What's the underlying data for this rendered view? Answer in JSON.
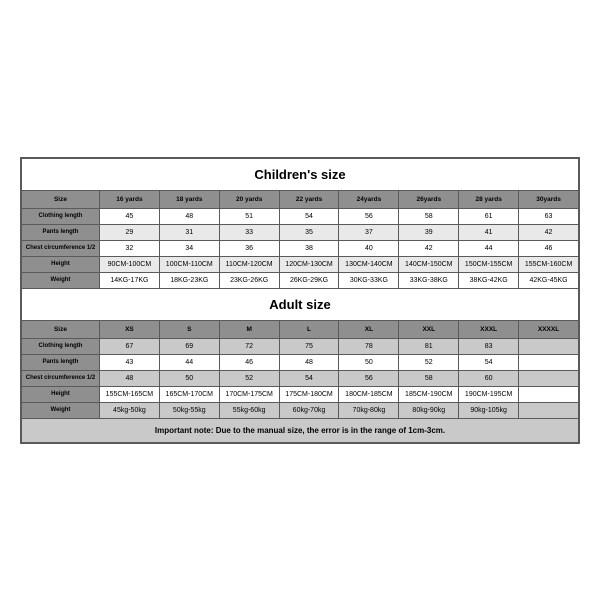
{
  "children": {
    "title": "Children's size",
    "headers": [
      "Size",
      "16 yards",
      "18 yards",
      "20 yards",
      "22 yards",
      "24yards",
      "26yards",
      "28 yards",
      "30yards"
    ],
    "rows": [
      {
        "label": "Clothing length",
        "vals": [
          "45",
          "48",
          "51",
          "54",
          "56",
          "58",
          "61",
          "63"
        ]
      },
      {
        "label": "Pants length",
        "vals": [
          "29",
          "31",
          "33",
          "35",
          "37",
          "39",
          "41",
          "42"
        ]
      },
      {
        "label": "Chest circumference 1/2",
        "vals": [
          "32",
          "34",
          "36",
          "38",
          "40",
          "42",
          "44",
          "46"
        ]
      },
      {
        "label": "Height",
        "vals": [
          "90CM-100CM",
          "100CM-110CM",
          "110CM-120CM",
          "120CM-130CM",
          "130CM-140CM",
          "140CM-150CM",
          "150CM-155CM",
          "155CM-160CM"
        ]
      },
      {
        "label": "Weight",
        "vals": [
          "14KG-17KG",
          "18KG-23KG",
          "23KG-26KG",
          "26KG-29KG",
          "30KG-33KG",
          "33KG-38KG",
          "38KG-42KG",
          "42KG-45KG"
        ]
      }
    ]
  },
  "adult": {
    "title": "Adult size",
    "headers": [
      "Size",
      "XS",
      "S",
      "M",
      "L",
      "XL",
      "XXL",
      "XXXL",
      "XXXXL"
    ],
    "rows": [
      {
        "label": "Clothing length",
        "vals": [
          "67",
          "69",
          "72",
          "75",
          "78",
          "81",
          "83",
          ""
        ]
      },
      {
        "label": "Pants length",
        "vals": [
          "43",
          "44",
          "46",
          "48",
          "50",
          "52",
          "54",
          ""
        ]
      },
      {
        "label": "Chest circumference 1/2",
        "vals": [
          "48",
          "50",
          "52",
          "54",
          "56",
          "58",
          "60",
          ""
        ]
      },
      {
        "label": "Height",
        "vals": [
          "155CM-165CM",
          "165CM-170CM",
          "170CM-175CM",
          "175CM-180CM",
          "180CM-185CM",
          "185CM-190CM",
          "190CM-195CM",
          ""
        ]
      },
      {
        "label": "Weight",
        "vals": [
          "45kg-50kg",
          "50kg-55kg",
          "55kg-60kg",
          "60kg-70kg",
          "70kg-80kg",
          "80kg-90kg",
          "90kg-105kg",
          ""
        ]
      }
    ]
  },
  "note": "Important note: Due to the manual size, the error is in the range of 1cm-3cm."
}
